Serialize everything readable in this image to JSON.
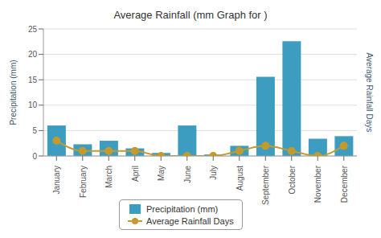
{
  "chart_data": {
    "type": "bar",
    "title": "Average Rainfall (mm Graph for )",
    "y_label": "Precipitation (mm)",
    "y2_label": "Average Rainfall Days",
    "categories": [
      "January",
      "February",
      "March",
      "April",
      "May",
      "June",
      "July",
      "August",
      "September",
      "October",
      "November",
      "December"
    ],
    "series": [
      {
        "name": "Precipitation (mm)",
        "type": "bar",
        "color": "#3d9dc1",
        "values": [
          6,
          2.3,
          3,
          1.5,
          0.6,
          6,
          0.3,
          2,
          15.6,
          22.6,
          3.4,
          3.9
        ]
      },
      {
        "name": "Average Rainfall Days",
        "type": "line",
        "color": "#c49a2c",
        "marker": "circle",
        "line_style": "solid",
        "values": [
          3,
          1,
          1,
          1,
          0,
          0,
          0,
          1,
          2,
          1,
          0,
          2
        ]
      }
    ],
    "ylim": [
      0,
      25
    ],
    "yticks": [
      0,
      5,
      10,
      15,
      20,
      25
    ],
    "grid": true,
    "legend": "bottom"
  }
}
